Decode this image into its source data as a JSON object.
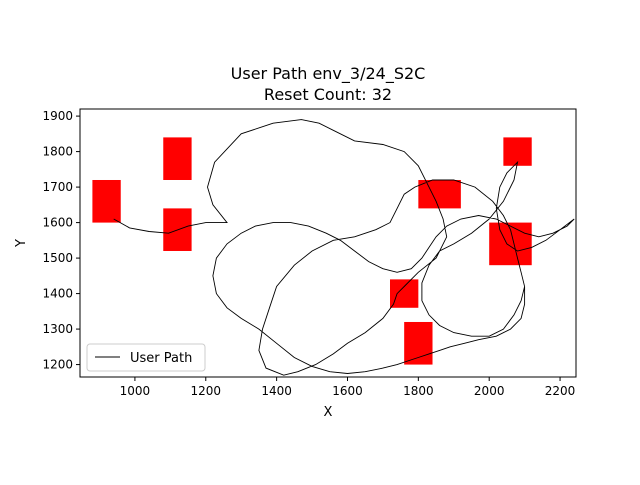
{
  "chart_data": {
    "type": "line",
    "title_line1": "User Path env_3/24_S2C",
    "title_line2": "Reset Count: 32",
    "xlabel": "X",
    "ylabel": "Y",
    "xlim": [
      845,
      2245
    ],
    "ylim": [
      1165,
      1920
    ],
    "xticks": [
      1000,
      1200,
      1400,
      1600,
      1800,
      2000,
      2200
    ],
    "yticks": [
      1200,
      1300,
      1400,
      1500,
      1600,
      1700,
      1800,
      1900
    ],
    "legend": {
      "label": "User Path",
      "location": "lower-left"
    },
    "grid": false,
    "colors": {
      "path": "#000000",
      "obstacle": "#ff0000",
      "frame": "#000000"
    },
    "obstacles": [
      {
        "x": [
          880,
          960
        ],
        "y": [
          1600,
          1720
        ]
      },
      {
        "x": [
          1080,
          1160
        ],
        "y": [
          1720,
          1840
        ]
      },
      {
        "x": [
          1080,
          1160
        ],
        "y": [
          1520,
          1640
        ]
      },
      {
        "x": [
          1800,
          1920
        ],
        "y": [
          1640,
          1720
        ]
      },
      {
        "x": [
          2040,
          2120
        ],
        "y": [
          1760,
          1840
        ]
      },
      {
        "x": [
          2000,
          2120
        ],
        "y": [
          1480,
          1600
        ]
      },
      {
        "x": [
          1720,
          1800
        ],
        "y": [
          1360,
          1440
        ]
      },
      {
        "x": [
          1760,
          1840
        ],
        "y": [
          1200,
          1320
        ]
      }
    ],
    "path": [
      [
        940,
        1610
      ],
      [
        985,
        1585
      ],
      [
        1040,
        1575
      ],
      [
        1095,
        1570
      ],
      [
        1150,
        1590
      ],
      [
        1200,
        1600
      ],
      [
        1260,
        1600
      ],
      [
        1220,
        1650
      ],
      [
        1205,
        1700
      ],
      [
        1225,
        1770
      ],
      [
        1300,
        1850
      ],
      [
        1390,
        1880
      ],
      [
        1470,
        1890
      ],
      [
        1520,
        1880
      ],
      [
        1560,
        1860
      ],
      [
        1620,
        1830
      ],
      [
        1700,
        1820
      ],
      [
        1760,
        1800
      ],
      [
        1800,
        1760
      ],
      [
        1830,
        1700
      ],
      [
        1850,
        1660
      ],
      [
        1870,
        1610
      ],
      [
        1880,
        1560
      ],
      [
        1850,
        1500
      ],
      [
        1800,
        1460
      ],
      [
        1760,
        1420
      ],
      [
        1740,
        1400
      ],
      [
        1730,
        1370
      ],
      [
        1700,
        1330
      ],
      [
        1650,
        1290
      ],
      [
        1600,
        1260
      ],
      [
        1560,
        1230
      ],
      [
        1510,
        1200
      ],
      [
        1460,
        1180
      ],
      [
        1420,
        1170
      ],
      [
        1370,
        1190
      ],
      [
        1350,
        1240
      ],
      [
        1360,
        1300
      ],
      [
        1380,
        1360
      ],
      [
        1400,
        1420
      ],
      [
        1450,
        1480
      ],
      [
        1500,
        1520
      ],
      [
        1560,
        1550
      ],
      [
        1620,
        1560
      ],
      [
        1680,
        1580
      ],
      [
        1720,
        1600
      ],
      [
        1740,
        1640
      ],
      [
        1760,
        1680
      ],
      [
        1790,
        1700
      ],
      [
        1840,
        1720
      ],
      [
        1900,
        1720
      ],
      [
        1960,
        1700
      ],
      [
        2010,
        1660
      ],
      [
        2040,
        1620
      ],
      [
        2060,
        1580
      ],
      [
        2070,
        1540
      ],
      [
        2080,
        1500
      ],
      [
        2090,
        1460
      ],
      [
        2100,
        1420
      ],
      [
        2100,
        1370
      ],
      [
        2090,
        1330
      ],
      [
        2060,
        1300
      ],
      [
        2020,
        1280
      ],
      [
        1970,
        1270
      ],
      [
        1930,
        1260
      ],
      [
        1890,
        1250
      ],
      [
        1860,
        1240
      ],
      [
        1830,
        1230
      ],
      [
        1800,
        1220
      ],
      [
        1770,
        1210
      ],
      [
        1740,
        1200
      ],
      [
        1700,
        1190
      ],
      [
        1650,
        1180
      ],
      [
        1600,
        1175
      ],
      [
        1550,
        1180
      ],
      [
        1500,
        1195
      ],
      [
        1450,
        1220
      ],
      [
        1400,
        1260
      ],
      [
        1350,
        1300
      ],
      [
        1300,
        1330
      ],
      [
        1260,
        1360
      ],
      [
        1230,
        1400
      ],
      [
        1220,
        1450
      ],
      [
        1230,
        1500
      ],
      [
        1260,
        1540
      ],
      [
        1300,
        1570
      ],
      [
        1340,
        1590
      ],
      [
        1390,
        1600
      ],
      [
        1440,
        1600
      ],
      [
        1490,
        1590
      ],
      [
        1540,
        1570
      ],
      [
        1580,
        1550
      ],
      [
        1620,
        1520
      ],
      [
        1660,
        1490
      ],
      [
        1700,
        1470
      ],
      [
        1740,
        1460
      ],
      [
        1780,
        1470
      ],
      [
        1810,
        1500
      ],
      [
        1830,
        1530
      ],
      [
        1850,
        1560
      ],
      [
        1880,
        1590
      ],
      [
        1920,
        1610
      ],
      [
        1970,
        1620
      ],
      [
        2020,
        1610
      ],
      [
        2060,
        1590
      ],
      [
        2100,
        1570
      ],
      [
        2140,
        1560
      ],
      [
        2180,
        1570
      ],
      [
        2220,
        1590
      ],
      [
        2240,
        1610
      ],
      [
        2200,
        1580
      ],
      [
        2160,
        1550
      ],
      [
        2120,
        1530
      ],
      [
        2080,
        1520
      ],
      [
        2050,
        1540
      ],
      [
        2030,
        1580
      ],
      [
        2020,
        1640
      ],
      [
        2030,
        1700
      ],
      [
        2050,
        1740
      ],
      [
        2080,
        1770
      ],
      [
        2070,
        1720
      ],
      [
        2040,
        1660
      ],
      [
        2000,
        1610
      ],
      [
        1950,
        1570
      ],
      [
        1900,
        1540
      ],
      [
        1860,
        1520
      ],
      [
        1830,
        1480
      ],
      [
        1810,
        1430
      ],
      [
        1810,
        1380
      ],
      [
        1830,
        1340
      ],
      [
        1860,
        1310
      ],
      [
        1900,
        1290
      ],
      [
        1950,
        1280
      ],
      [
        2000,
        1280
      ],
      [
        2040,
        1300
      ],
      [
        2070,
        1340
      ],
      [
        2090,
        1380
      ],
      [
        2100,
        1420
      ]
    ]
  }
}
